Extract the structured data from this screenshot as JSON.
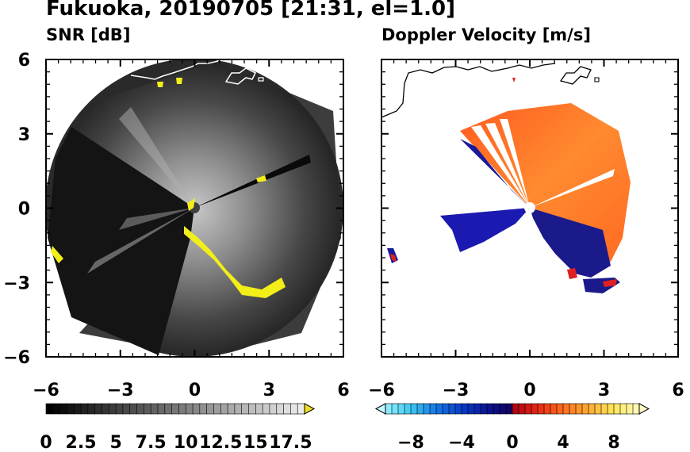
{
  "title": "Fukuoka, 20190705 [21:31, el=1.0]",
  "chart_data": [
    {
      "type": "heatmap",
      "subtitle": "SNR [dB]",
      "x_ticks": [
        "−6",
        "−3",
        "0",
        "3",
        "6"
      ],
      "y_ticks": [
        "6",
        "3",
        "0",
        "−3",
        "−6"
      ],
      "xlim": [
        -6,
        6
      ],
      "ylim": [
        -6,
        6
      ],
      "radar_range_km": 6,
      "radar_center": [
        0,
        0
      ],
      "colorbar": {
        "min": 0,
        "max": 18.5,
        "step": 0.5,
        "tick_labels": [
          "0",
          "2.5",
          "5",
          "7.5",
          "10",
          "12.5",
          "15",
          "17.5"
        ],
        "tick_values": [
          0,
          2.5,
          5,
          7.5,
          10,
          12.5,
          15,
          17.5
        ],
        "overflow_color": "#f0e020"
      },
      "strong_echo_color": "#f2ee1a",
      "coastline_color": "#ffffff"
    },
    {
      "type": "heatmap",
      "subtitle": "Doppler Velocity [m/s]",
      "x_ticks": [
        "−6",
        "−3",
        "0",
        "3",
        "6"
      ],
      "xlim": [
        -6,
        6
      ],
      "ylim": [
        -6,
        6
      ],
      "colorbar": {
        "min": -10,
        "max": 10,
        "step": 0.5,
        "tick_labels": [
          "−8",
          "−4",
          "0",
          "4",
          "8"
        ],
        "tick_values": [
          -8,
          -4,
          0,
          4,
          8
        ],
        "underflow_color": "#c8f8ff",
        "overflow_color": "#fff8c8"
      },
      "coastline_color": "#000000"
    }
  ]
}
